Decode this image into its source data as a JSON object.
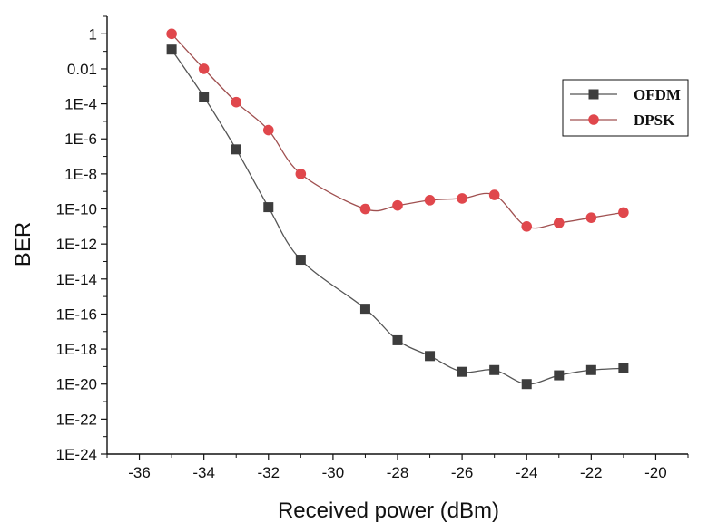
{
  "chart_data": {
    "type": "line",
    "title": "",
    "xlabel": "Received power (dBm)",
    "ylabel": "BER",
    "x_scale": "linear",
    "y_scale": "log",
    "xlim": [
      -37,
      -19
    ],
    "ylim_exp": [
      -24,
      1
    ],
    "x_ticks": [
      -36,
      -34,
      -32,
      -30,
      -28,
      -26,
      -24,
      -22,
      -20
    ],
    "y_ticks": [
      {
        "exp": 0,
        "label": "1"
      },
      {
        "exp": -2,
        "label": "0.01"
      },
      {
        "exp": -4,
        "label": "1E-4"
      },
      {
        "exp": -6,
        "label": "1E-6"
      },
      {
        "exp": -8,
        "label": "1E-8"
      },
      {
        "exp": -10,
        "label": "1E-10"
      },
      {
        "exp": -12,
        "label": "1E-12"
      },
      {
        "exp": -14,
        "label": "1E-14"
      },
      {
        "exp": -16,
        "label": "1E-16"
      },
      {
        "exp": -18,
        "label": "1E-18"
      },
      {
        "exp": -20,
        "label": "1E-20"
      },
      {
        "exp": -22,
        "label": "1E-22"
      },
      {
        "exp": -24,
        "label": "1E-24"
      }
    ],
    "grid": false,
    "legend_position": "top-right",
    "series": [
      {
        "name": "OFDM",
        "marker": "square",
        "color": "#3d3d3d",
        "line_color": "#555555",
        "x": [
          -35,
          -34,
          -33,
          -32,
          -31,
          -29,
          -28,
          -27,
          -26,
          -25,
          -24,
          -23,
          -22,
          -21
        ],
        "log10_ber": [
          -0.9,
          -3.6,
          -6.6,
          -9.9,
          -12.9,
          -15.7,
          -17.5,
          -18.4,
          -19.3,
          -19.2,
          -20.0,
          -19.5,
          -19.2,
          -19.1
        ]
      },
      {
        "name": "DPSK",
        "marker": "circle",
        "color": "#e0474c",
        "line_color": "#a05050",
        "x": [
          -35,
          -34,
          -33,
          -32,
          -31,
          -29,
          -28,
          -27,
          -26,
          -25,
          -24,
          -23,
          -22,
          -21
        ],
        "log10_ber": [
          0.0,
          -2.0,
          -3.9,
          -5.5,
          -8.0,
          -10.0,
          -9.8,
          -9.5,
          -9.4,
          -9.2,
          -11.0,
          -10.8,
          -10.5,
          -10.2
        ]
      }
    ]
  }
}
